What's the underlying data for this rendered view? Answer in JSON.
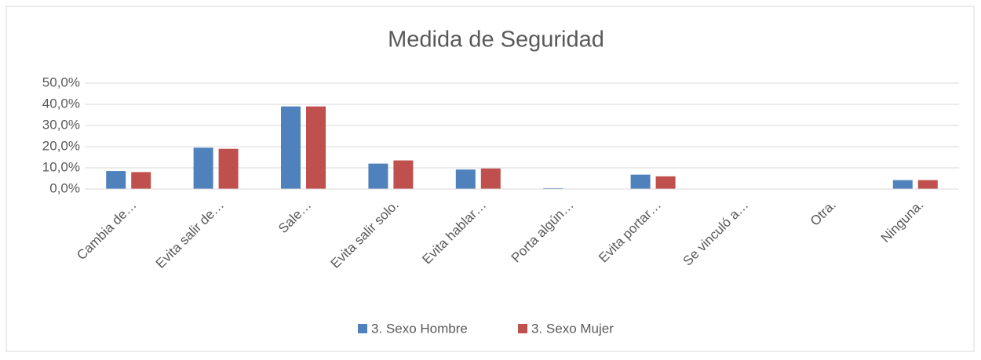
{
  "chart_data": {
    "type": "bar",
    "title": "Medida de Seguridad",
    "categories": [
      "Cambia de…",
      "Evita salir de…",
      "Sale…",
      "Evita salir solo.",
      "Evita hablar…",
      "Porta algún…",
      "Evita portar…",
      "Se vinculó a…",
      "Otra.",
      "Ninguna."
    ],
    "series": [
      {
        "name": "3. Sexo Hombre",
        "color": "#4f81bd",
        "values": [
          8.5,
          19.5,
          39,
          12,
          9.2,
          0.4,
          6.8,
          0,
          0,
          4.2
        ]
      },
      {
        "name": "3. Sexo Mujer",
        "color": "#c0504d",
        "values": [
          8,
          19,
          39,
          13.5,
          9.7,
          0.1,
          6,
          0,
          0,
          4.2
        ]
      }
    ],
    "ylim": [
      0,
      50
    ],
    "yticks": [
      {
        "value": 0,
        "label": "0,0%"
      },
      {
        "value": 10,
        "label": "10,0%"
      },
      {
        "value": 20,
        "label": "20,0%"
      },
      {
        "value": 30,
        "label": "30,0%"
      },
      {
        "value": 40,
        "label": "40,0%"
      },
      {
        "value": 50,
        "label": "50,0%"
      }
    ],
    "grid": true,
    "legend": "bottom"
  }
}
